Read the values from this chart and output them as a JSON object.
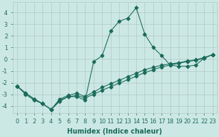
{
  "title": "",
  "xlabel": "Humidex (Indice chaleur)",
  "ylabel": "",
  "xlim": [
    -0.5,
    23.5
  ],
  "ylim": [
    -4.6,
    4.9
  ],
  "background_color": "#cce8e4",
  "grid_color": "#b0c8c4",
  "line_color": "#1a6b5a",
  "line1_x": [
    0,
    1,
    2,
    3,
    4,
    5,
    6,
    7,
    8,
    9,
    10,
    11,
    12,
    13,
    14,
    15,
    16,
    17,
    18,
    19,
    20,
    21,
    22,
    23
  ],
  "line1_y": [
    -2.3,
    -3.0,
    -3.5,
    -3.8,
    -4.3,
    -3.6,
    -3.2,
    -3.2,
    -3.5,
    -0.2,
    0.3,
    2.4,
    3.25,
    3.5,
    4.4,
    2.15,
    1.0,
    0.3,
    -0.5,
    -0.6,
    -0.6,
    -0.5,
    0.1,
    0.4
  ],
  "line2_x": [
    0,
    1,
    2,
    3,
    4,
    5,
    6,
    7,
    8,
    9,
    10,
    11,
    12,
    13,
    14,
    15,
    16,
    17,
    18,
    19,
    20,
    21,
    22,
    23
  ],
  "line2_y": [
    -2.3,
    -2.9,
    -3.4,
    -3.8,
    -4.3,
    -3.4,
    -3.1,
    -2.9,
    -3.2,
    -2.8,
    -2.4,
    -2.1,
    -1.8,
    -1.5,
    -1.2,
    -0.9,
    -0.7,
    -0.5,
    -0.4,
    -0.3,
    -0.15,
    -0.05,
    0.15,
    0.4
  ],
  "line3_x": [
    0,
    1,
    2,
    3,
    4,
    5,
    6,
    7,
    8,
    9,
    10,
    11,
    12,
    13,
    14,
    15,
    16,
    17,
    18,
    19,
    20,
    21,
    22,
    23
  ],
  "line3_y": [
    -2.3,
    -2.9,
    -3.4,
    -3.8,
    -4.3,
    -3.5,
    -3.2,
    -3.1,
    -3.3,
    -3.0,
    -2.65,
    -2.35,
    -2.05,
    -1.75,
    -1.45,
    -1.15,
    -0.9,
    -0.65,
    -0.5,
    -0.35,
    -0.2,
    -0.1,
    0.1,
    0.4
  ],
  "yticks": [
    -4,
    -3,
    -2,
    -1,
    0,
    1,
    2,
    3,
    4
  ],
  "xticks": [
    0,
    1,
    2,
    3,
    4,
    5,
    6,
    7,
    8,
    9,
    10,
    11,
    12,
    13,
    14,
    15,
    16,
    17,
    18,
    19,
    20,
    21,
    22,
    23
  ],
  "marker": "D",
  "markersize": 2.5,
  "linewidth": 0.8,
  "font_size": 6,
  "xlabel_fontsize": 7
}
